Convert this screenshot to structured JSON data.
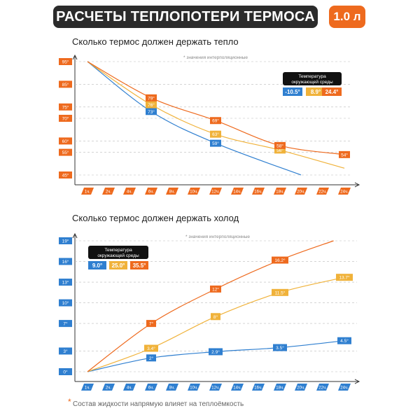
{
  "header": {
    "title": "РАСЧЕТЫ ТЕПЛОПОТЕРИ ТЕРМОСА",
    "volume": "1.0 л"
  },
  "footnote": "Состав жидкости напрямую влияет на теплоёмкость",
  "colors": {
    "blue": "#2f7fd0",
    "yellow": "#f0b23a",
    "orange": "#ee6a1e",
    "dark": "#2b2b2b"
  },
  "chart_data": [
    {
      "type": "line",
      "title": "Сколько термос должен держать тепло",
      "note": "* значения интерполяционные",
      "legend_title": "Температура окружающей среды",
      "x_ticks": [
        "1ч.",
        "2ч.",
        "4ч.",
        "6ч.",
        "8ч.",
        "10ч.",
        "12ч.",
        "14ч.",
        "16ч.",
        "18ч.",
        "20ч.",
        "22ч.",
        "24ч."
      ],
      "y_ticks": [
        "95°",
        "85°",
        "75°",
        "70°",
        "60°",
        "55°",
        "45°"
      ],
      "y_tick_values": [
        95,
        85,
        75,
        70,
        60,
        55,
        45
      ],
      "ylim": [
        45,
        95
      ],
      "series": [
        {
          "name": "-10.5°",
          "color": "#2f7fd0",
          "points": [
            [
              1,
              95
            ],
            [
              6,
              73
            ],
            [
              12,
              59
            ],
            [
              20,
              45
            ]
          ],
          "labels": [
            {
              "x": 6,
              "y": 73,
              "text": "73°"
            },
            {
              "x": 12,
              "y": 59,
              "text": "59°"
            }
          ]
        },
        {
          "name": "8.9°",
          "color": "#f0b23a",
          "points": [
            [
              1,
              95
            ],
            [
              6,
              76
            ],
            [
              12,
              63
            ],
            [
              18,
              56
            ],
            [
              24,
              48
            ]
          ],
          "labels": [
            {
              "x": 6,
              "y": 76,
              "text": "76°"
            },
            {
              "x": 12,
              "y": 63,
              "text": "63°"
            },
            {
              "x": 18,
              "y": 56,
              "text": "56°"
            }
          ]
        },
        {
          "name": "24.4°",
          "color": "#ee6a1e",
          "points": [
            [
              1,
              95
            ],
            [
              6,
              79
            ],
            [
              12,
              69
            ],
            [
              18,
              58
            ],
            [
              24,
              54
            ]
          ],
          "labels": [
            {
              "x": 6,
              "y": 79,
              "text": "79°"
            },
            {
              "x": 12,
              "y": 69,
              "text": "69°"
            },
            {
              "x": 18,
              "y": 58,
              "text": "58°"
            },
            {
              "x": 24,
              "y": 54,
              "text": "54°"
            }
          ]
        }
      ]
    },
    {
      "type": "line",
      "title": "Сколько термос должен держать холод",
      "note": "* значения интерполяционные",
      "legend_title": "Температура окружающей среды",
      "x_ticks": [
        "1ч.",
        "2ч.",
        "4ч.",
        "6ч.",
        "8ч.",
        "10ч.",
        "12ч.",
        "14ч.",
        "16ч.",
        "18ч.",
        "20ч.",
        "22ч.",
        "24ч."
      ],
      "y_ticks": [
        "0°",
        "3°",
        "7°",
        "10°",
        "13°",
        "16°",
        "19°"
      ],
      "y_tick_values": [
        0,
        3,
        7,
        10,
        13,
        16,
        19
      ],
      "ylim": [
        0,
        19
      ],
      "series": [
        {
          "name": "9.0°",
          "color": "#2f7fd0",
          "points": [
            [
              1,
              0
            ],
            [
              6,
              2
            ],
            [
              12,
              2.9
            ],
            [
              18,
              3.5
            ],
            [
              24,
              4.5
            ]
          ],
          "labels": [
            {
              "x": 6,
              "y": 2,
              "text": "2°"
            },
            {
              "x": 12,
              "y": 2.9,
              "text": "2.9°"
            },
            {
              "x": 18,
              "y": 3.5,
              "text": "3.5°"
            },
            {
              "x": 24,
              "y": 4.5,
              "text": "4.5°"
            }
          ]
        },
        {
          "name": "25.0°",
          "color": "#f0b23a",
          "points": [
            [
              1,
              0
            ],
            [
              6,
              3.4
            ],
            [
              12,
              8
            ],
            [
              18,
              11.5
            ],
            [
              24,
              13.7
            ]
          ],
          "labels": [
            {
              "x": 6,
              "y": 3.4,
              "text": "3.4°"
            },
            {
              "x": 12,
              "y": 8,
              "text": "8°"
            },
            {
              "x": 18,
              "y": 11.5,
              "text": "11.5°"
            },
            {
              "x": 24,
              "y": 13.7,
              "text": "13.7°"
            }
          ]
        },
        {
          "name": "35.5°",
          "color": "#ee6a1e",
          "points": [
            [
              1,
              0
            ],
            [
              6,
              7
            ],
            [
              12,
              12
            ],
            [
              18,
              16.2
            ],
            [
              23,
              19
            ]
          ],
          "labels": [
            {
              "x": 6,
              "y": 7,
              "text": "7°"
            },
            {
              "x": 12,
              "y": 12,
              "text": "12°"
            },
            {
              "x": 18,
              "y": 16.2,
              "text": "16.2°"
            }
          ]
        }
      ]
    }
  ]
}
